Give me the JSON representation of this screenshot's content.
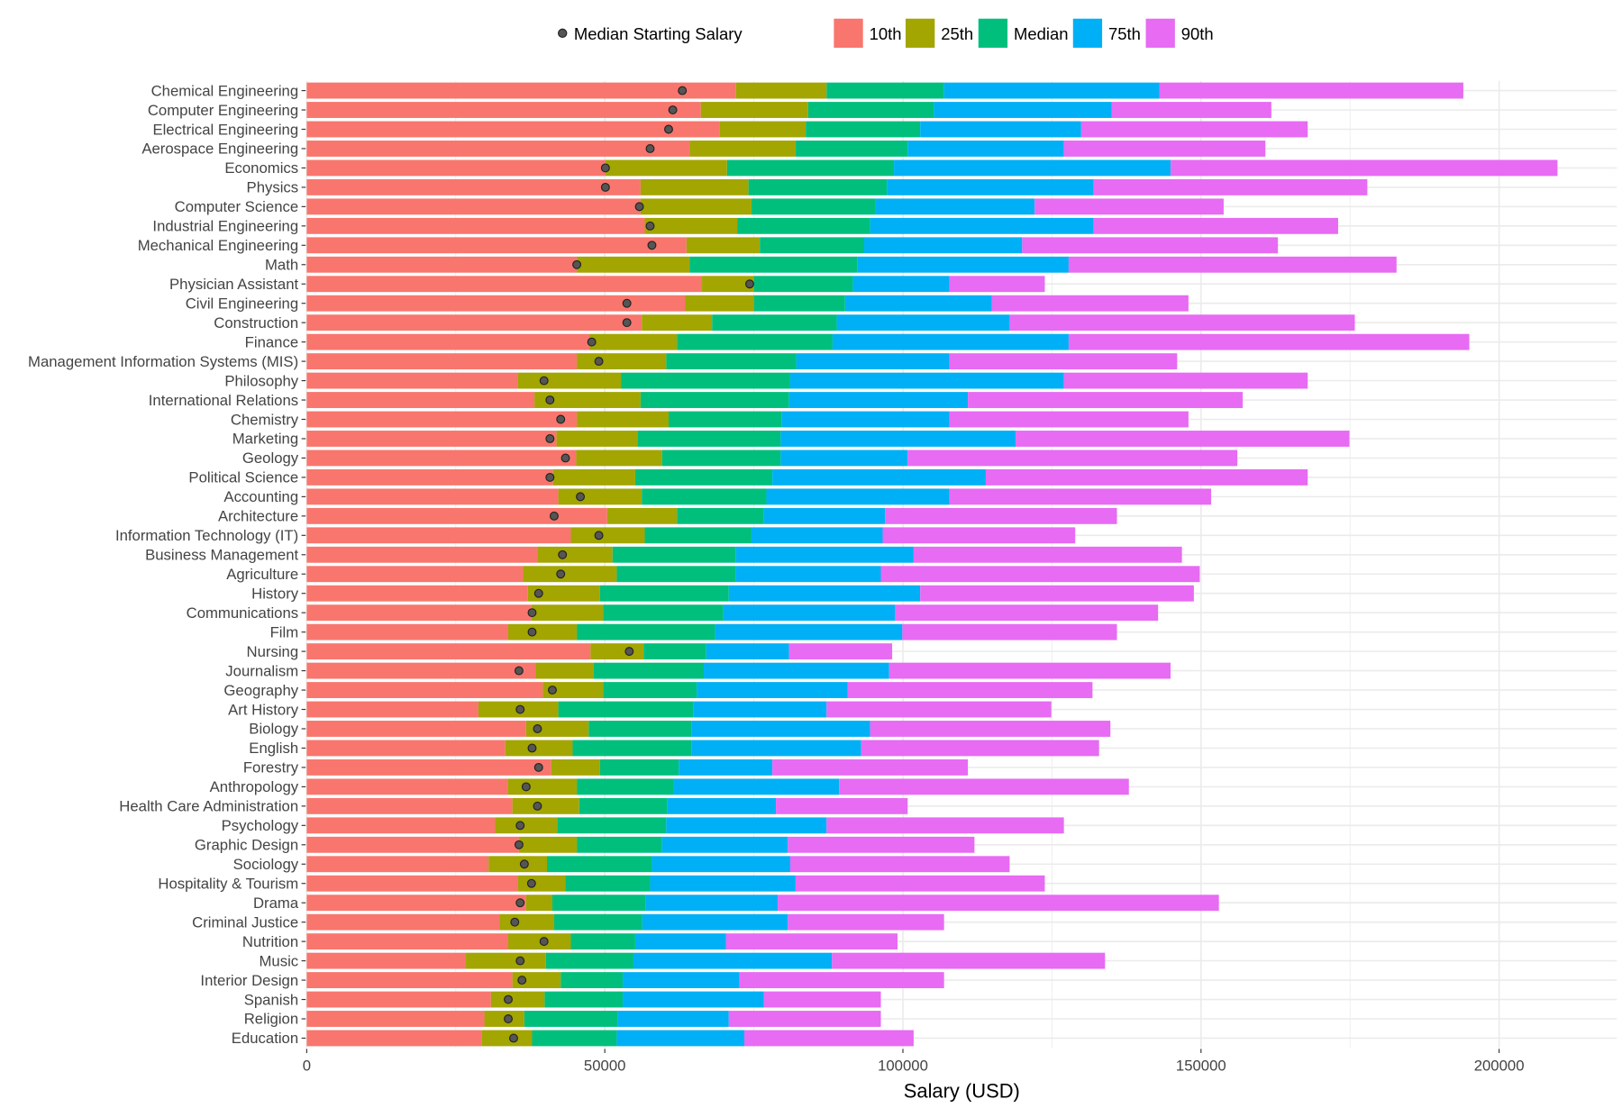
{
  "chart_data": {
    "type": "bar",
    "orientation": "horizontal",
    "stacking": "percentile-ranges",
    "xlabel": "Salary (USD)",
    "ylabel": "",
    "xlim": [
      0,
      220000
    ],
    "xticks": [
      0,
      50000,
      100000,
      150000,
      200000
    ],
    "grid": true,
    "legend_position": "top",
    "legend": {
      "point_label": "Median Starting Salary",
      "series_labels": [
        "10th",
        "25th",
        "Median",
        "75th",
        "90th"
      ]
    },
    "colors": {
      "10th": "#F8766D",
      "25th": "#A3A500",
      "Median": "#00BF7D",
      "75th": "#00B0F6",
      "90th": "#E76BF3",
      "point": "#555555"
    },
    "categories": [
      "Chemical Engineering",
      "Computer Engineering",
      "Electrical Engineering",
      "Aerospace Engineering",
      "Economics",
      "Physics",
      "Computer Science",
      "Industrial Engineering",
      "Mechanical Engineering",
      "Math",
      "Physician Assistant",
      "Civil Engineering",
      "Construction",
      "Finance",
      "Management Information Systems (MIS)",
      "Philosophy",
      "International Relations",
      "Chemistry",
      "Marketing",
      "Geology",
      "Political Science",
      "Accounting",
      "Architecture",
      "Information Technology (IT)",
      "Business Management",
      "Agriculture",
      "History",
      "Communications",
      "Film",
      "Nursing",
      "Journalism",
      "Geography",
      "Art History",
      "Biology",
      "English",
      "Forestry",
      "Anthropology",
      "Health Care Administration",
      "Psychology",
      "Graphic Design",
      "Sociology",
      "Hospitality & Tourism",
      "Drama",
      "Criminal Justice",
      "Nutrition",
      "Music",
      "Interior Design",
      "Spanish",
      "Religion",
      "Education"
    ],
    "series": [
      {
        "name": "10th",
        "values": [
          72000,
          66100,
          69200,
          64200,
          50100,
          56000,
          56000,
          56700,
          63700,
          45300,
          66300,
          63500,
          56200,
          47400,
          45300,
          35400,
          38200,
          45300,
          41900,
          45200,
          41300,
          42200,
          50400,
          44300,
          38700,
          36300,
          37100,
          37700,
          33800,
          47600,
          38400,
          39600,
          28800,
          36800,
          33300,
          41000,
          33700,
          34500,
          31600,
          35600,
          30500,
          35400,
          36800,
          32300,
          33800,
          26700,
          34500,
          30900,
          29800,
          29300
        ]
      },
      {
        "name": "25th",
        "values": [
          87200,
          84100,
          83700,
          82000,
          70500,
          74100,
          74600,
          72200,
          76000,
          64200,
          75000,
          75000,
          68000,
          62100,
          60300,
          52700,
          56000,
          60700,
          55500,
          59600,
          55100,
          56200,
          62100,
          56700,
          51300,
          52000,
          49200,
          49700,
          45300,
          56500,
          48100,
          49700,
          42200,
          47300,
          44600,
          49200,
          45300,
          45700,
          42000,
          45300,
          40300,
          43400,
          41200,
          41500,
          44300,
          40100,
          42600,
          39900,
          36500,
          37800
        ]
      },
      {
        "name": "Median",
        "values": [
          106900,
          105200,
          102900,
          100800,
          98500,
          97300,
          95400,
          94500,
          93500,
          92400,
          91600,
          90300,
          88900,
          88200,
          82100,
          81100,
          80900,
          79700,
          79500,
          79500,
          78100,
          77100,
          76700,
          74600,
          72000,
          71900,
          70800,
          69900,
          68500,
          67000,
          66600,
          65400,
          64900,
          64500,
          64500,
          62400,
          61600,
          60500,
          60300,
          59600,
          57900,
          57600,
          56900,
          56300,
          55100,
          54800,
          53000,
          53000,
          52100,
          52000
        ]
      },
      {
        "name": "75th",
        "values": [
          143000,
          135000,
          129900,
          127000,
          144900,
          132000,
          122100,
          132000,
          120000,
          127800,
          107800,
          114900,
          117900,
          127800,
          107800,
          127000,
          110900,
          107800,
          118900,
          100800,
          113900,
          107800,
          97000,
          96600,
          101800,
          96300,
          102900,
          98700,
          99900,
          80900,
          97700,
          90700,
          87200,
          94500,
          93000,
          78100,
          89300,
          78700,
          87200,
          80700,
          81100,
          82000,
          79000,
          80700,
          70300,
          88100,
          72600,
          76700,
          70800,
          73400
        ]
      },
      {
        "name": "90th",
        "values": [
          194000,
          161800,
          167900,
          160800,
          209800,
          177900,
          153800,
          173000,
          162900,
          182800,
          123800,
          147900,
          175800,
          195000,
          146000,
          167900,
          157000,
          147900,
          174900,
          156100,
          167900,
          151700,
          135900,
          128900,
          146800,
          149800,
          148800,
          142800,
          135900,
          98200,
          144900,
          131800,
          124900,
          134800,
          132900,
          110900,
          137900,
          100800,
          127000,
          112000,
          117900,
          123800,
          153000,
          106900,
          99100,
          133900,
          106900,
          96300,
          96300,
          101800
        ]
      }
    ],
    "points": {
      "name": "Median Starting Salary",
      "values": [
        63000,
        61400,
        60700,
        57600,
        50100,
        50100,
        55800,
        57600,
        57900,
        45300,
        74300,
        53700,
        53700,
        47800,
        49000,
        39800,
        40800,
        42600,
        40800,
        43400,
        40800,
        45900,
        41500,
        49000,
        42900,
        42600,
        38900,
        37800,
        37800,
        54100,
        35600,
        41200,
        35800,
        38700,
        37800,
        38900,
        36800,
        38700,
        35800,
        35600,
        36500,
        37700,
        35800,
        34900,
        39800,
        35800,
        36100,
        33800,
        33800,
        34700
      ]
    }
  }
}
